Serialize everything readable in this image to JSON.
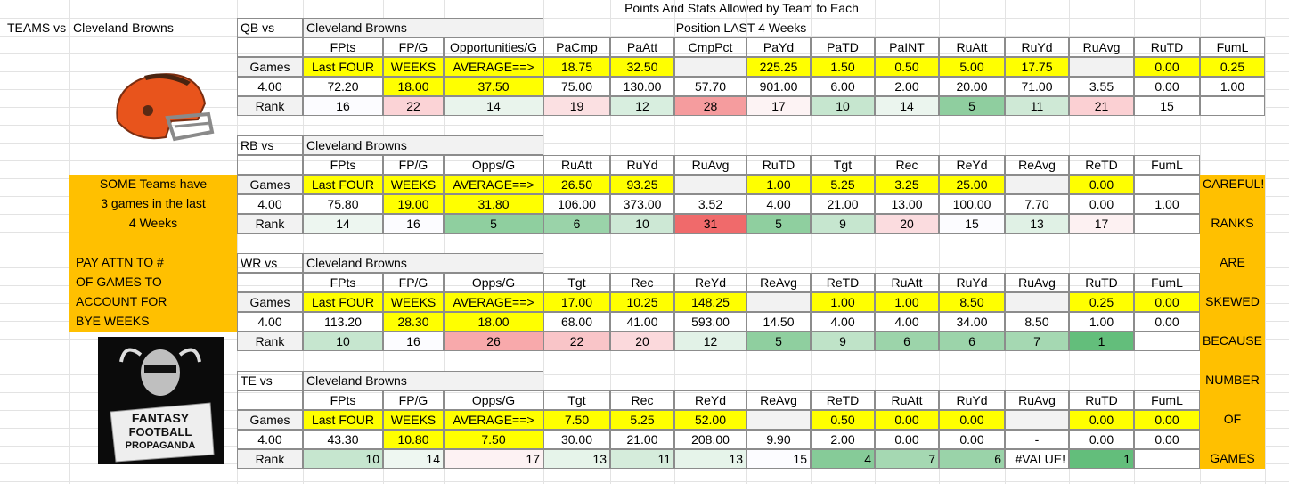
{
  "title_line1": "Points And Stats Allowed by Team to Each",
  "title_line2": "Position LAST 4 Weeks",
  "teams_vs": "TEAMS vs",
  "team": "Cleveland Browns",
  "logo_text": [
    "FANTASY",
    "FOOTBALL",
    "PROPAGANDA"
  ],
  "note_left": [
    "SOME Teams have",
    "3 games in the last",
    "4 Weeks",
    "PAY ATTN TO #",
    "OF GAMES TO",
    "ACCOUNT FOR",
    "BYE WEEKS"
  ],
  "note_right": [
    "CAREFUL!",
    "RANKS",
    "ARE",
    "SKEWED",
    "BECAUSE",
    "NUMBER",
    "OF",
    "GAMES"
  ],
  "sections": [
    {
      "label": "QB vs",
      "team": "Cleveland Browns",
      "headers": [
        "FPts",
        "FP/G",
        "Opportunities/G",
        "PaCmp",
        "PaAtt",
        "CmpPct",
        "PaYd",
        "PaTD",
        "PaINT",
        "RuAtt",
        "RuYd",
        "RuAvg",
        "RuTD",
        "FumL"
      ],
      "games_row": [
        "Games",
        "Last FOUR",
        "WEEKS",
        "AVERAGE==>",
        "18.75",
        "32.50",
        null,
        "225.25",
        "1.50",
        "0.50",
        "5.00",
        "17.75",
        null,
        "0.00",
        "0.25"
      ],
      "totals_row": [
        "4.00",
        "72.20",
        "18.00",
        "37.50",
        "75.00",
        "130.00",
        "57.70",
        "901.00",
        "6.00",
        "2.00",
        "20.00",
        "71.00",
        "3.55",
        "0.00",
        "1.00"
      ],
      "rank_row": [
        "Rank",
        "16",
        "22",
        "14",
        "19",
        "12",
        "28",
        "17",
        "10",
        "14",
        "5",
        "11",
        "21",
        "15",
        null
      ],
      "rank_colors": [
        "#fcfcff",
        "#fbd3d6",
        "#e9f4ec",
        "#fbe0e2",
        "#d8eedf",
        "#f59c9e",
        "#fdf3f4",
        "#c6e6cf",
        "#ebf5ee",
        "#8fce9f",
        "#cfe9d6",
        "#fbd0d3",
        "#ffffff"
      ],
      "rank_align": "center"
    },
    {
      "label": "RB vs",
      "team": "Cleveland Browns",
      "headers": [
        "FPts",
        "FP/G",
        "Opps/G",
        "RuAtt",
        "RuYd",
        "RuAvg",
        "RuTD",
        "Tgt",
        "Rec",
        "ReYd",
        "ReAvg",
        "ReTD",
        "FumL"
      ],
      "games_row": [
        "Games",
        "Last FOUR",
        "WEEKS",
        "AVERAGE==>",
        "26.50",
        "93.25",
        null,
        "1.00",
        "5.25",
        "3.25",
        "25.00",
        null,
        "0.00",
        null
      ],
      "totals_row": [
        "4.00",
        "75.80",
        "19.00",
        "31.80",
        "106.00",
        "373.00",
        "3.52",
        "4.00",
        "21.00",
        "13.00",
        "100.00",
        "7.70",
        "0.00",
        "1.00"
      ],
      "rank_row": [
        "Rank",
        "14",
        "16",
        "5",
        "6",
        "10",
        "31",
        "5",
        "9",
        "20",
        "15",
        "13",
        "17",
        null
      ],
      "rank_colors": [
        "#edf6f0",
        "#fcfcff",
        "#8fcf9f",
        "#9ad3a9",
        "#cde8d5",
        "#f06a6b",
        "#8fcf9f",
        "#c6e6cf",
        "#fbdcdf",
        "#fcfcff",
        "#e0f1e5",
        "#fdf1f2"
      ],
      "rank_align": "center"
    },
    {
      "label": "WR vs",
      "team": "Cleveland Browns",
      "headers": [
        "FPts",
        "FP/G",
        "Opps/G",
        "Tgt",
        "Rec",
        "ReYd",
        "ReAvg",
        "ReTD",
        "RuAtt",
        "RuYd",
        "RuAvg",
        "RuTD",
        "FumL"
      ],
      "games_row": [
        "Games",
        "Last FOUR",
        "WEEKS",
        "AVERAGE==>",
        "17.00",
        "10.25",
        "148.25",
        null,
        "1.00",
        "1.00",
        "8.50",
        null,
        "0.25",
        "0.00"
      ],
      "totals_row": [
        "4.00",
        "113.20",
        "28.30",
        "18.00",
        "68.00",
        "41.00",
        "593.00",
        "14.50",
        "4.00",
        "4.00",
        "34.00",
        "8.50",
        "1.00",
        "0.00"
      ],
      "rank_row": [
        "Rank",
        "10",
        "16",
        "26",
        "22",
        "20",
        "12",
        "5",
        "9",
        "6",
        "6",
        "7",
        "1",
        null
      ],
      "rank_colors": [
        "#c6e6cf",
        "#fcfcff",
        "#f8a9ab",
        "#f9c5c8",
        "#fbd9dc",
        "#e2f2e7",
        "#8fcf9f",
        "#bfe3c8",
        "#9cd4aa",
        "#9cd4aa",
        "#a5d8b2",
        "#63be7b"
      ],
      "rank_align": "center"
    },
    {
      "label": "TE vs",
      "team": "Cleveland Browns",
      "headers": [
        "FPts",
        "FP/G",
        "Opps/G",
        "Tgt",
        "Rec",
        "ReYd",
        "ReAvg",
        "ReTD",
        "RuAtt",
        "RuYd",
        "RuAvg",
        "RuTD",
        "FumL"
      ],
      "games_row": [
        "Games",
        "Last FOUR",
        "WEEKS",
        "AVERAGE==>",
        "7.50",
        "5.25",
        "52.00",
        null,
        "0.50",
        "0.00",
        "0.00",
        null,
        "0.00",
        "0.00"
      ],
      "totals_row": [
        "4.00",
        "43.30",
        "10.80",
        "7.50",
        "30.00",
        "21.00",
        "208.00",
        "9.90",
        "2.00",
        "0.00",
        "0.00",
        "-",
        "0.00",
        "0.00"
      ],
      "rank_row": [
        "Rank",
        "10",
        "14",
        "17",
        "13",
        "11",
        "13",
        "15",
        "4",
        "7",
        "6",
        "#VALUE!",
        "1",
        null
      ],
      "rank_colors": [
        "#c6e6cf",
        "#eef7f1",
        "#fdf2f3",
        "#e6f4ea",
        "#d5ecdb",
        "#e6f4ea",
        "#fcfcff",
        "#86cb98",
        "#a5d8b2",
        "#9ad3a9",
        "#ffffff",
        "#63be7b"
      ],
      "rank_align": "right"
    }
  ]
}
